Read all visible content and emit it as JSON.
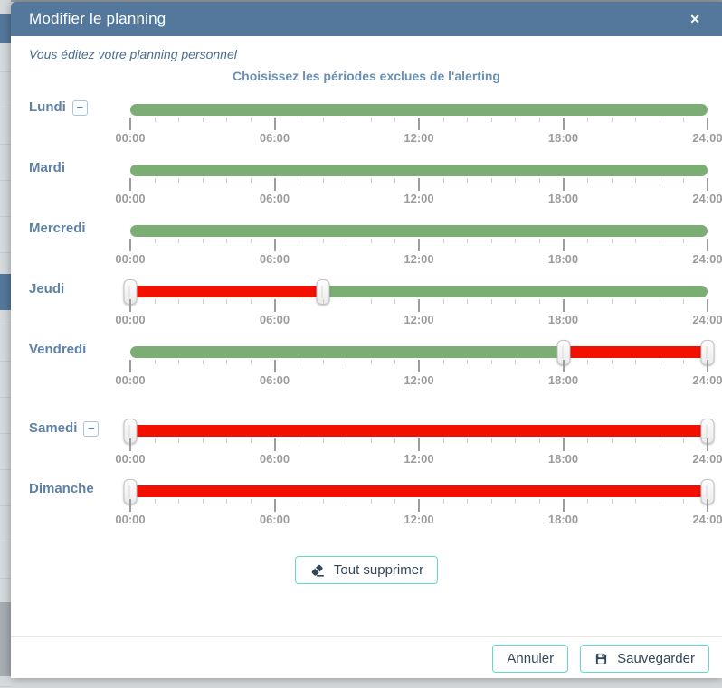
{
  "modal": {
    "title": "Modifier le planning",
    "subtitle": "Vous éditez votre planning personnel",
    "heading": "Choisissez les périodes exclues de l'alerting"
  },
  "icons": {
    "close_glyph": "✕",
    "remove_day_glyph": "−",
    "clear_icon": "eraser-icon",
    "save_icon": "save-icon"
  },
  "slider": {
    "hour_start": 0,
    "hour_end": 24,
    "minor_tick_every_hours": 1,
    "major_tick_every_hours": 6,
    "time_labels": [
      "00:00",
      "06:00",
      "12:00",
      "18:00",
      "24:00"
    ],
    "colors": {
      "included": "#7bad75",
      "excluded": "#f21000"
    }
  },
  "days": [
    {
      "label": "Lundi",
      "removable": true,
      "extra_gap_before": false,
      "segments": [
        {
          "start": 0,
          "end": 24,
          "type": "included"
        }
      ],
      "handles": []
    },
    {
      "label": "Mardi",
      "removable": false,
      "extra_gap_before": false,
      "segments": [
        {
          "start": 0,
          "end": 24,
          "type": "included"
        }
      ],
      "handles": []
    },
    {
      "label": "Mercredi",
      "removable": false,
      "extra_gap_before": false,
      "segments": [
        {
          "start": 0,
          "end": 24,
          "type": "included"
        }
      ],
      "handles": []
    },
    {
      "label": "Jeudi",
      "removable": false,
      "extra_gap_before": false,
      "segments": [
        {
          "start": 0,
          "end": 8,
          "type": "excluded"
        },
        {
          "start": 8,
          "end": 24,
          "type": "included"
        }
      ],
      "handles": [
        0,
        8
      ]
    },
    {
      "label": "Vendredi",
      "removable": false,
      "extra_gap_before": false,
      "segments": [
        {
          "start": 0,
          "end": 18,
          "type": "included"
        },
        {
          "start": 18,
          "end": 24,
          "type": "excluded"
        }
      ],
      "handles": [
        18,
        24
      ]
    },
    {
      "label": "Samedi",
      "removable": true,
      "extra_gap_before": true,
      "segments": [
        {
          "start": 0,
          "end": 24,
          "type": "excluded"
        }
      ],
      "handles": [
        0,
        24
      ]
    },
    {
      "label": "Dimanche",
      "removable": false,
      "extra_gap_before": false,
      "segments": [
        {
          "start": 0,
          "end": 24,
          "type": "excluded"
        }
      ],
      "handles": [
        0,
        24
      ]
    }
  ],
  "actions": {
    "clear_all": "Tout supprimer",
    "cancel": "Annuler",
    "save": "Sauvegarder"
  }
}
